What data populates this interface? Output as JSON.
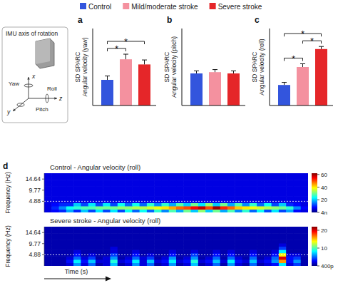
{
  "chart_data": [
    {
      "type": "bar",
      "panel": "a",
      "y_label": "SD SPARC\nAngular velocity (yaw)",
      "categories": [
        "Control",
        "Mild/moderate stroke",
        "Severe stroke"
      ],
      "colors": [
        "#3355dd",
        "#f4919f",
        "#e52629"
      ],
      "values": [
        0.2,
        0.36,
        0.32
      ],
      "errors": [
        0.03,
        0.04,
        0.035
      ],
      "ylim": [
        0,
        0.6
      ],
      "tick_labels": false,
      "legend": "top",
      "significance": [
        {
          "from": 0,
          "to": 1,
          "label": "*"
        },
        {
          "from": 0,
          "to": 2,
          "label": "*"
        }
      ]
    },
    {
      "type": "bar",
      "panel": "b",
      "y_label": "SD SPARC\nAngular velocity (pitch)",
      "categories": [
        null,
        null,
        null
      ],
      "colors": [
        "#3355dd",
        "#f4919f",
        "#e52629"
      ],
      "values": [
        0.25,
        0.26,
        0.25
      ],
      "errors": [
        0.02,
        0.02,
        0.02
      ],
      "ylim": [
        0,
        0.6
      ],
      "tick_labels": false,
      "significance": []
    },
    {
      "type": "bar",
      "panel": "c",
      "y_label": "SD SPARC\nAngular velocity (roll)",
      "categories": [
        null,
        null,
        null
      ],
      "colors": [
        "#3355dd",
        "#f4919f",
        "#e52629"
      ],
      "values": [
        0.16,
        0.3,
        0.44
      ],
      "errors": [
        0.02,
        0.025,
        0.02
      ],
      "ylim": [
        0,
        0.6
      ],
      "tick_labels": false,
      "significance": [
        {
          "from": 0,
          "to": 1,
          "label": "*"
        },
        {
          "from": 1,
          "to": 2,
          "label": "*"
        },
        {
          "from": 0,
          "to": 2,
          "label": "*"
        }
      ]
    },
    {
      "type": "heatmap",
      "panel": "d",
      "title": "Control - Angular velocity (roll)",
      "y_label": "Frequency (Hz)",
      "ylim": [
        0,
        17.2
      ],
      "yticks": [
        4.88,
        9.77,
        14.64
      ],
      "tick_labels": "y",
      "reference_line": 4.88,
      "color_range": [
        4e-09,
        62
      ],
      "color_ticks": [
        60,
        40,
        20,
        {
          "value": 4e-09,
          "label": "4n"
        }
      ],
      "cells": [
        [
          6,
          8,
          10,
          18,
          10,
          20,
          12,
          22,
          12,
          22,
          12,
          24,
          14,
          24,
          14,
          26,
          16,
          28,
          18,
          30,
          20,
          32,
          20,
          30,
          18,
          28,
          16,
          26,
          14,
          24,
          12,
          22,
          12,
          18,
          8,
          6
        ],
        [
          6,
          10,
          16,
          24,
          26,
          28,
          28,
          30,
          30,
          30,
          32,
          32,
          34,
          34,
          36,
          38,
          40,
          44,
          48,
          50,
          54,
          58,
          50,
          60,
          52,
          48,
          42,
          40,
          38,
          36,
          34,
          32,
          30,
          26,
          16,
          8
        ],
        [
          6,
          8,
          10,
          10,
          20,
          12,
          22,
          12,
          22,
          12,
          24,
          14,
          24,
          14,
          26,
          16,
          26,
          18,
          28,
          20,
          30,
          22,
          32,
          20,
          30,
          18,
          28,
          16,
          26,
          14,
          24,
          12,
          20,
          10,
          8,
          6
        ],
        [
          6,
          6,
          6,
          6,
          6,
          6,
          6,
          6,
          6,
          6,
          6,
          6,
          6,
          6,
          6,
          6,
          6,
          6,
          6,
          6,
          6,
          6,
          6,
          6,
          6,
          6,
          6,
          6,
          6,
          6,
          6,
          6,
          6,
          6,
          6,
          6
        ],
        [
          6,
          6,
          6,
          6,
          6,
          6,
          6,
          6,
          6,
          6,
          6,
          6,
          6,
          6,
          6,
          6,
          6,
          6,
          6,
          6,
          6,
          6,
          6,
          6,
          6,
          6,
          6,
          6,
          6,
          6,
          6,
          6,
          6,
          6,
          6,
          6
        ],
        [
          6,
          6,
          6,
          6,
          6,
          6,
          6,
          6,
          6,
          6,
          6,
          6,
          6,
          6,
          6,
          6,
          6,
          6,
          6,
          6,
          6,
          6,
          6,
          6,
          6,
          6,
          6,
          6,
          6,
          6,
          6,
          6,
          6,
          6,
          6,
          6
        ],
        [
          6,
          6,
          6,
          6,
          6,
          6,
          6,
          6,
          6,
          6,
          6,
          6,
          6,
          6,
          6,
          6,
          6,
          6,
          6,
          6,
          6,
          6,
          6,
          6,
          6,
          6,
          6,
          6,
          6,
          6,
          6,
          6,
          6,
          6,
          6,
          6
        ],
        [
          6,
          6,
          6,
          6,
          6,
          6,
          6,
          6,
          6,
          6,
          6,
          6,
          6,
          6,
          6,
          6,
          6,
          6,
          6,
          6,
          6,
          6,
          6,
          6,
          6,
          6,
          6,
          6,
          6,
          6,
          6,
          6,
          6,
          6,
          6,
          6
        ],
        [
          6,
          6,
          6,
          6,
          6,
          6,
          6,
          6,
          6,
          6,
          6,
          6,
          6,
          6,
          6,
          6,
          6,
          6,
          6,
          6,
          6,
          6,
          6,
          6,
          6,
          6,
          6,
          6,
          6,
          6,
          6,
          6,
          6,
          6,
          6,
          6
        ],
        [
          6,
          6,
          6,
          6,
          6,
          6,
          6,
          6,
          6,
          6,
          6,
          6,
          6,
          6,
          6,
          6,
          6,
          6,
          6,
          6,
          6,
          6,
          6,
          6,
          6,
          6,
          6,
          6,
          6,
          6,
          6,
          6,
          6,
          6,
          6,
          6
        ],
        [
          6,
          6,
          6,
          6,
          6,
          6,
          6,
          6,
          6,
          6,
          6,
          6,
          6,
          6,
          6,
          6,
          6,
          6,
          6,
          6,
          6,
          6,
          6,
          6,
          6,
          6,
          6,
          6,
          6,
          6,
          6,
          6,
          6,
          6,
          6,
          6
        ],
        [
          6,
          6,
          6,
          6,
          6,
          6,
          6,
          6,
          6,
          6,
          6,
          6,
          6,
          6,
          6,
          6,
          6,
          6,
          6,
          6,
          6,
          6,
          6,
          6,
          6,
          6,
          6,
          6,
          6,
          6,
          6,
          6,
          6,
          6,
          6,
          6
        ]
      ]
    },
    {
      "type": "heatmap",
      "title": "Severe stroke - Angular velocity (roll)",
      "y_label": "Frequency (Hz)",
      "x_label": "Time (s)",
      "ylim": [
        0,
        17.2
      ],
      "yticks": [
        4.88,
        9.77,
        14.64
      ],
      "tick_labels": "y",
      "reference_line": 4.88,
      "color_range": [
        4e-10,
        22
      ],
      "color_ticks": [
        20,
        10,
        {
          "value": 4e-10,
          "label": "400p"
        }
      ],
      "cells": [
        [
          1,
          1,
          1,
          2,
          6,
          2,
          5,
          1,
          2,
          7,
          1,
          2,
          6,
          2,
          5,
          1,
          2,
          6,
          1,
          2,
          7,
          1,
          2,
          5,
          1,
          6,
          2,
          1,
          5,
          1,
          2,
          3,
          8,
          2,
          4,
          1
        ],
        [
          1,
          1,
          1,
          3,
          8,
          3,
          7,
          2,
          2,
          9,
          2,
          3,
          8,
          2,
          7,
          2,
          3,
          8,
          2,
          3,
          9,
          2,
          3,
          7,
          2,
          8,
          3,
          2,
          7,
          2,
          3,
          6,
          16,
          3,
          6,
          1
        ],
        [
          1,
          1,
          1,
          2,
          5,
          2,
          4,
          1,
          2,
          6,
          1,
          2,
          5,
          2,
          4,
          1,
          2,
          6,
          1,
          2,
          6,
          1,
          2,
          5,
          1,
          5,
          2,
          1,
          5,
          1,
          2,
          5,
          20,
          3,
          4,
          1
        ],
        [
          1,
          1,
          1,
          1,
          3,
          1,
          2,
          1,
          1,
          4,
          1,
          1,
          3,
          1,
          2,
          1,
          1,
          3,
          1,
          1,
          4,
          1,
          1,
          3,
          1,
          3,
          1,
          1,
          3,
          1,
          1,
          3,
          14,
          2,
          2,
          1
        ],
        [
          1,
          1,
          1,
          1,
          2,
          1,
          1,
          1,
          1,
          2,
          1,
          1,
          2,
          1,
          1,
          1,
          1,
          2,
          1,
          1,
          2,
          1,
          1,
          2,
          1,
          2,
          1,
          1,
          2,
          1,
          1,
          2,
          8,
          1,
          1,
          1
        ],
        [
          1,
          1,
          1,
          1,
          1,
          1,
          1,
          1,
          1,
          2,
          1,
          1,
          1,
          1,
          1,
          1,
          1,
          1,
          1,
          1,
          1,
          1,
          1,
          1,
          1,
          1,
          1,
          1,
          1,
          1,
          1,
          1,
          4,
          1,
          1,
          1
        ],
        [
          1,
          1,
          1,
          1,
          1,
          1,
          1,
          1,
          1,
          1,
          1,
          1,
          1,
          1,
          1,
          1,
          1,
          1,
          1,
          1,
          1,
          1,
          1,
          1,
          1,
          1,
          1,
          1,
          1,
          1,
          1,
          1,
          2,
          1,
          1,
          1
        ],
        [
          1,
          1,
          1,
          1,
          1,
          1,
          1,
          1,
          1,
          1,
          1,
          1,
          1,
          1,
          1,
          1,
          1,
          1,
          1,
          1,
          1,
          1,
          1,
          1,
          1,
          1,
          1,
          1,
          1,
          1,
          1,
          1,
          1,
          1,
          1,
          1
        ],
        [
          1,
          1,
          1,
          1,
          1,
          1,
          1,
          1,
          1,
          1,
          1,
          1,
          1,
          1,
          1,
          1,
          1,
          1,
          1,
          1,
          1,
          1,
          1,
          1,
          1,
          1,
          1,
          1,
          1,
          1,
          1,
          1,
          1,
          1,
          1,
          1
        ],
        [
          1,
          1,
          1,
          1,
          1,
          1,
          1,
          1,
          1,
          1,
          1,
          1,
          1,
          1,
          1,
          1,
          1,
          1,
          1,
          1,
          1,
          1,
          1,
          1,
          1,
          1,
          1,
          1,
          1,
          1,
          1,
          1,
          1,
          1,
          1,
          1
        ],
        [
          1,
          1,
          1,
          1,
          1,
          1,
          1,
          1,
          1,
          1,
          1,
          1,
          1,
          1,
          1,
          1,
          1,
          1,
          1,
          1,
          1,
          1,
          1,
          1,
          1,
          1,
          1,
          1,
          1,
          1,
          1,
          1,
          1,
          1,
          1,
          1
        ],
        [
          1,
          1,
          1,
          1,
          1,
          1,
          1,
          1,
          1,
          1,
          1,
          1,
          1,
          1,
          1,
          1,
          1,
          1,
          1,
          1,
          1,
          1,
          1,
          1,
          1,
          1,
          1,
          1,
          1,
          1,
          1,
          1,
          1,
          1,
          1,
          1
        ]
      ]
    }
  ],
  "inset": {
    "title": "IMU axis of rotation",
    "axes": [
      "x",
      "y",
      "z"
    ],
    "rotations": [
      "Yaw",
      "Roll",
      "Pitch"
    ]
  }
}
